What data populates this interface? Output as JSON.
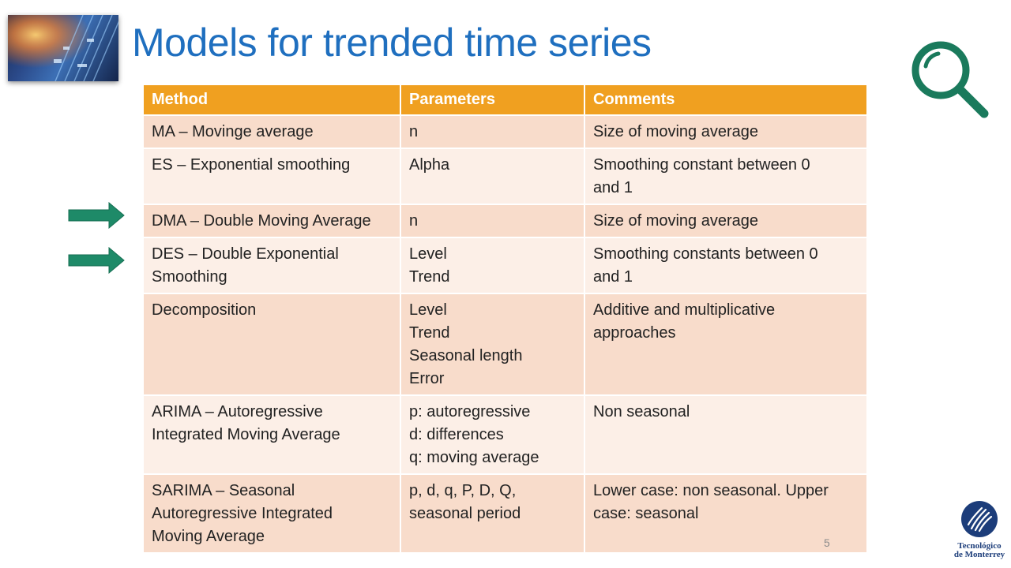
{
  "slide": {
    "title": "Models for trended time series",
    "page_number": "5"
  },
  "table": {
    "headers": {
      "method": "Method",
      "parameters": "Parameters",
      "comments": "Comments"
    },
    "rows": [
      {
        "method": "MA – Movinge average",
        "parameters": "n",
        "comments": "Size of moving average"
      },
      {
        "method": "ES – Exponential smoothing",
        "parameters": "Alpha",
        "comments": "Smoothing constant between 0\nand 1"
      },
      {
        "method": "DMA – Double Moving Average",
        "parameters": "n",
        "comments": "Size of moving average"
      },
      {
        "method": "DES – Double Exponential\nSmoothing",
        "parameters": "Level\nTrend",
        "comments": "Smoothing constants between 0\nand 1"
      },
      {
        "method": "Decomposition",
        "parameters": "Level\nTrend\nSeasonal length\nError",
        "comments": "Additive and multiplicative\napproaches"
      },
      {
        "method": "ARIMA – Autoregressive\nIntegrated Moving Average",
        "parameters": "p: autoregressive\nd: differences\nq: moving average",
        "comments": "Non seasonal"
      },
      {
        "method": "SARIMA – Seasonal\nAutoregressive Integrated\nMoving Average",
        "parameters": "p, d, q, P, D, Q,\nseasonal period",
        "comments": "Lower case: non seasonal. Upper\ncase: seasonal"
      }
    ]
  },
  "logo": {
    "text": "Tecnológico\nde Monterrey"
  },
  "icons": {
    "search": "search-icon",
    "arrow": "arrow-right-icon",
    "logo": "tec-de-monterrey-logo"
  },
  "colors": {
    "title": "#1f6fbf",
    "header_bg": "#f0a020",
    "row_odd": "#f8dccb",
    "row_even": "#fcefe7",
    "arrow": "#1e8a68",
    "search_icon": "#1a7a5c",
    "logo": "#1c3d7a"
  }
}
